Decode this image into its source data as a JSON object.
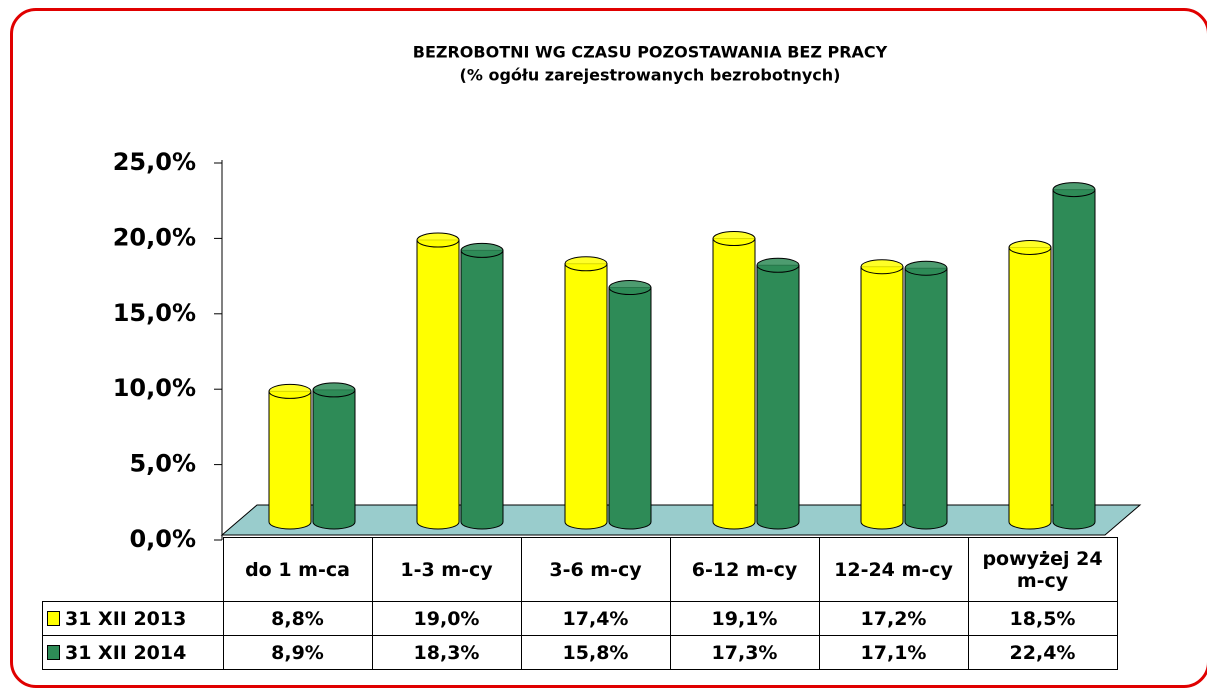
{
  "chart_data": {
    "type": "bar",
    "title": "BEZROBOTNI  WG CZASU POZOSTAWANIA  BEZ PRACY",
    "subtitle": "(% ogółu zarejestrowanych bezrobotnych)",
    "categories": [
      "do 1 m-ca",
      "1-3 m-cy",
      "3-6 m-cy",
      "6-12 m-cy",
      "12-24 m-cy",
      "powyżej 24 m-cy"
    ],
    "series": [
      {
        "name": "31 XII 2013",
        "color": "#ffff00",
        "values": [
          8.8,
          19.0,
          17.4,
          19.1,
          17.2,
          18.5
        ],
        "value_labels": [
          "8,8%",
          "19,0%",
          "17,4%",
          "19,1%",
          "17,2%",
          "18,5%"
        ]
      },
      {
        "name": "31 XII 2014",
        "color": "#2e8b57",
        "values": [
          8.9,
          18.3,
          15.8,
          17.3,
          17.1,
          22.4
        ],
        "value_labels": [
          "8,9%",
          "18,3%",
          "15,8%",
          "17,3%",
          "17,1%",
          "22,4%"
        ]
      }
    ],
    "ylim": [
      0,
      25
    ],
    "yticks": [
      {
        "value": 0,
        "label": "0,0%"
      },
      {
        "value": 5,
        "label": "5,0%"
      },
      {
        "value": 10,
        "label": "10,0%"
      },
      {
        "value": 15,
        "label": "15,0%"
      },
      {
        "value": 20,
        "label": "20,0%"
      },
      {
        "value": 25,
        "label": "25,0%"
      }
    ],
    "grid": false
  }
}
